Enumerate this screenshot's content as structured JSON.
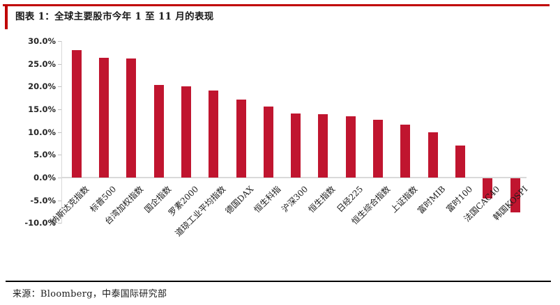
{
  "header": {
    "title": "图表 1：全球主要股市今年 1 至 11 月的表现"
  },
  "footer": {
    "source": "来源：Bloomberg，中泰国际研究部"
  },
  "colors": {
    "accent_red": "#c00000",
    "bar": "#c0152f",
    "axis_gray": "#d9d9d9",
    "text_dark": "#1a1a1a"
  },
  "chart_data": {
    "type": "bar",
    "title": "全球主要股市今年 1 至 11 月的表现",
    "categories": [
      "纳斯达克指数",
      "标普500",
      "台湾加权指数",
      "国企指数",
      "罗素2000",
      "道琼工业平均指数",
      "德国DAX",
      "恒生科指",
      "沪深300",
      "恒生指数",
      "日经225",
      "恒生综合指数",
      "上证指数",
      "富时MIB",
      "富时100",
      "法国CAC40",
      "韩国KOSPI"
    ],
    "values": [
      28.0,
      26.4,
      26.1,
      20.4,
      20.1,
      19.1,
      17.2,
      15.6,
      14.1,
      13.9,
      13.4,
      12.7,
      11.7,
      10.0,
      7.0,
      -4.4,
      -7.5
    ],
    "xlabel": "",
    "ylabel": "",
    "ylim": [
      -10,
      30
    ],
    "ytick_step": 5,
    "ytick_labels": [
      "30.0%",
      "25.0%",
      "20.0%",
      "15.0%",
      "10.0%",
      "5.0%",
      "0.0%",
      "-5.0%",
      "-10.0%"
    ],
    "unit": "percent",
    "grid": false,
    "legend_position": "none",
    "bar_color": "#c0152f",
    "label_rotation_deg": 45
  }
}
